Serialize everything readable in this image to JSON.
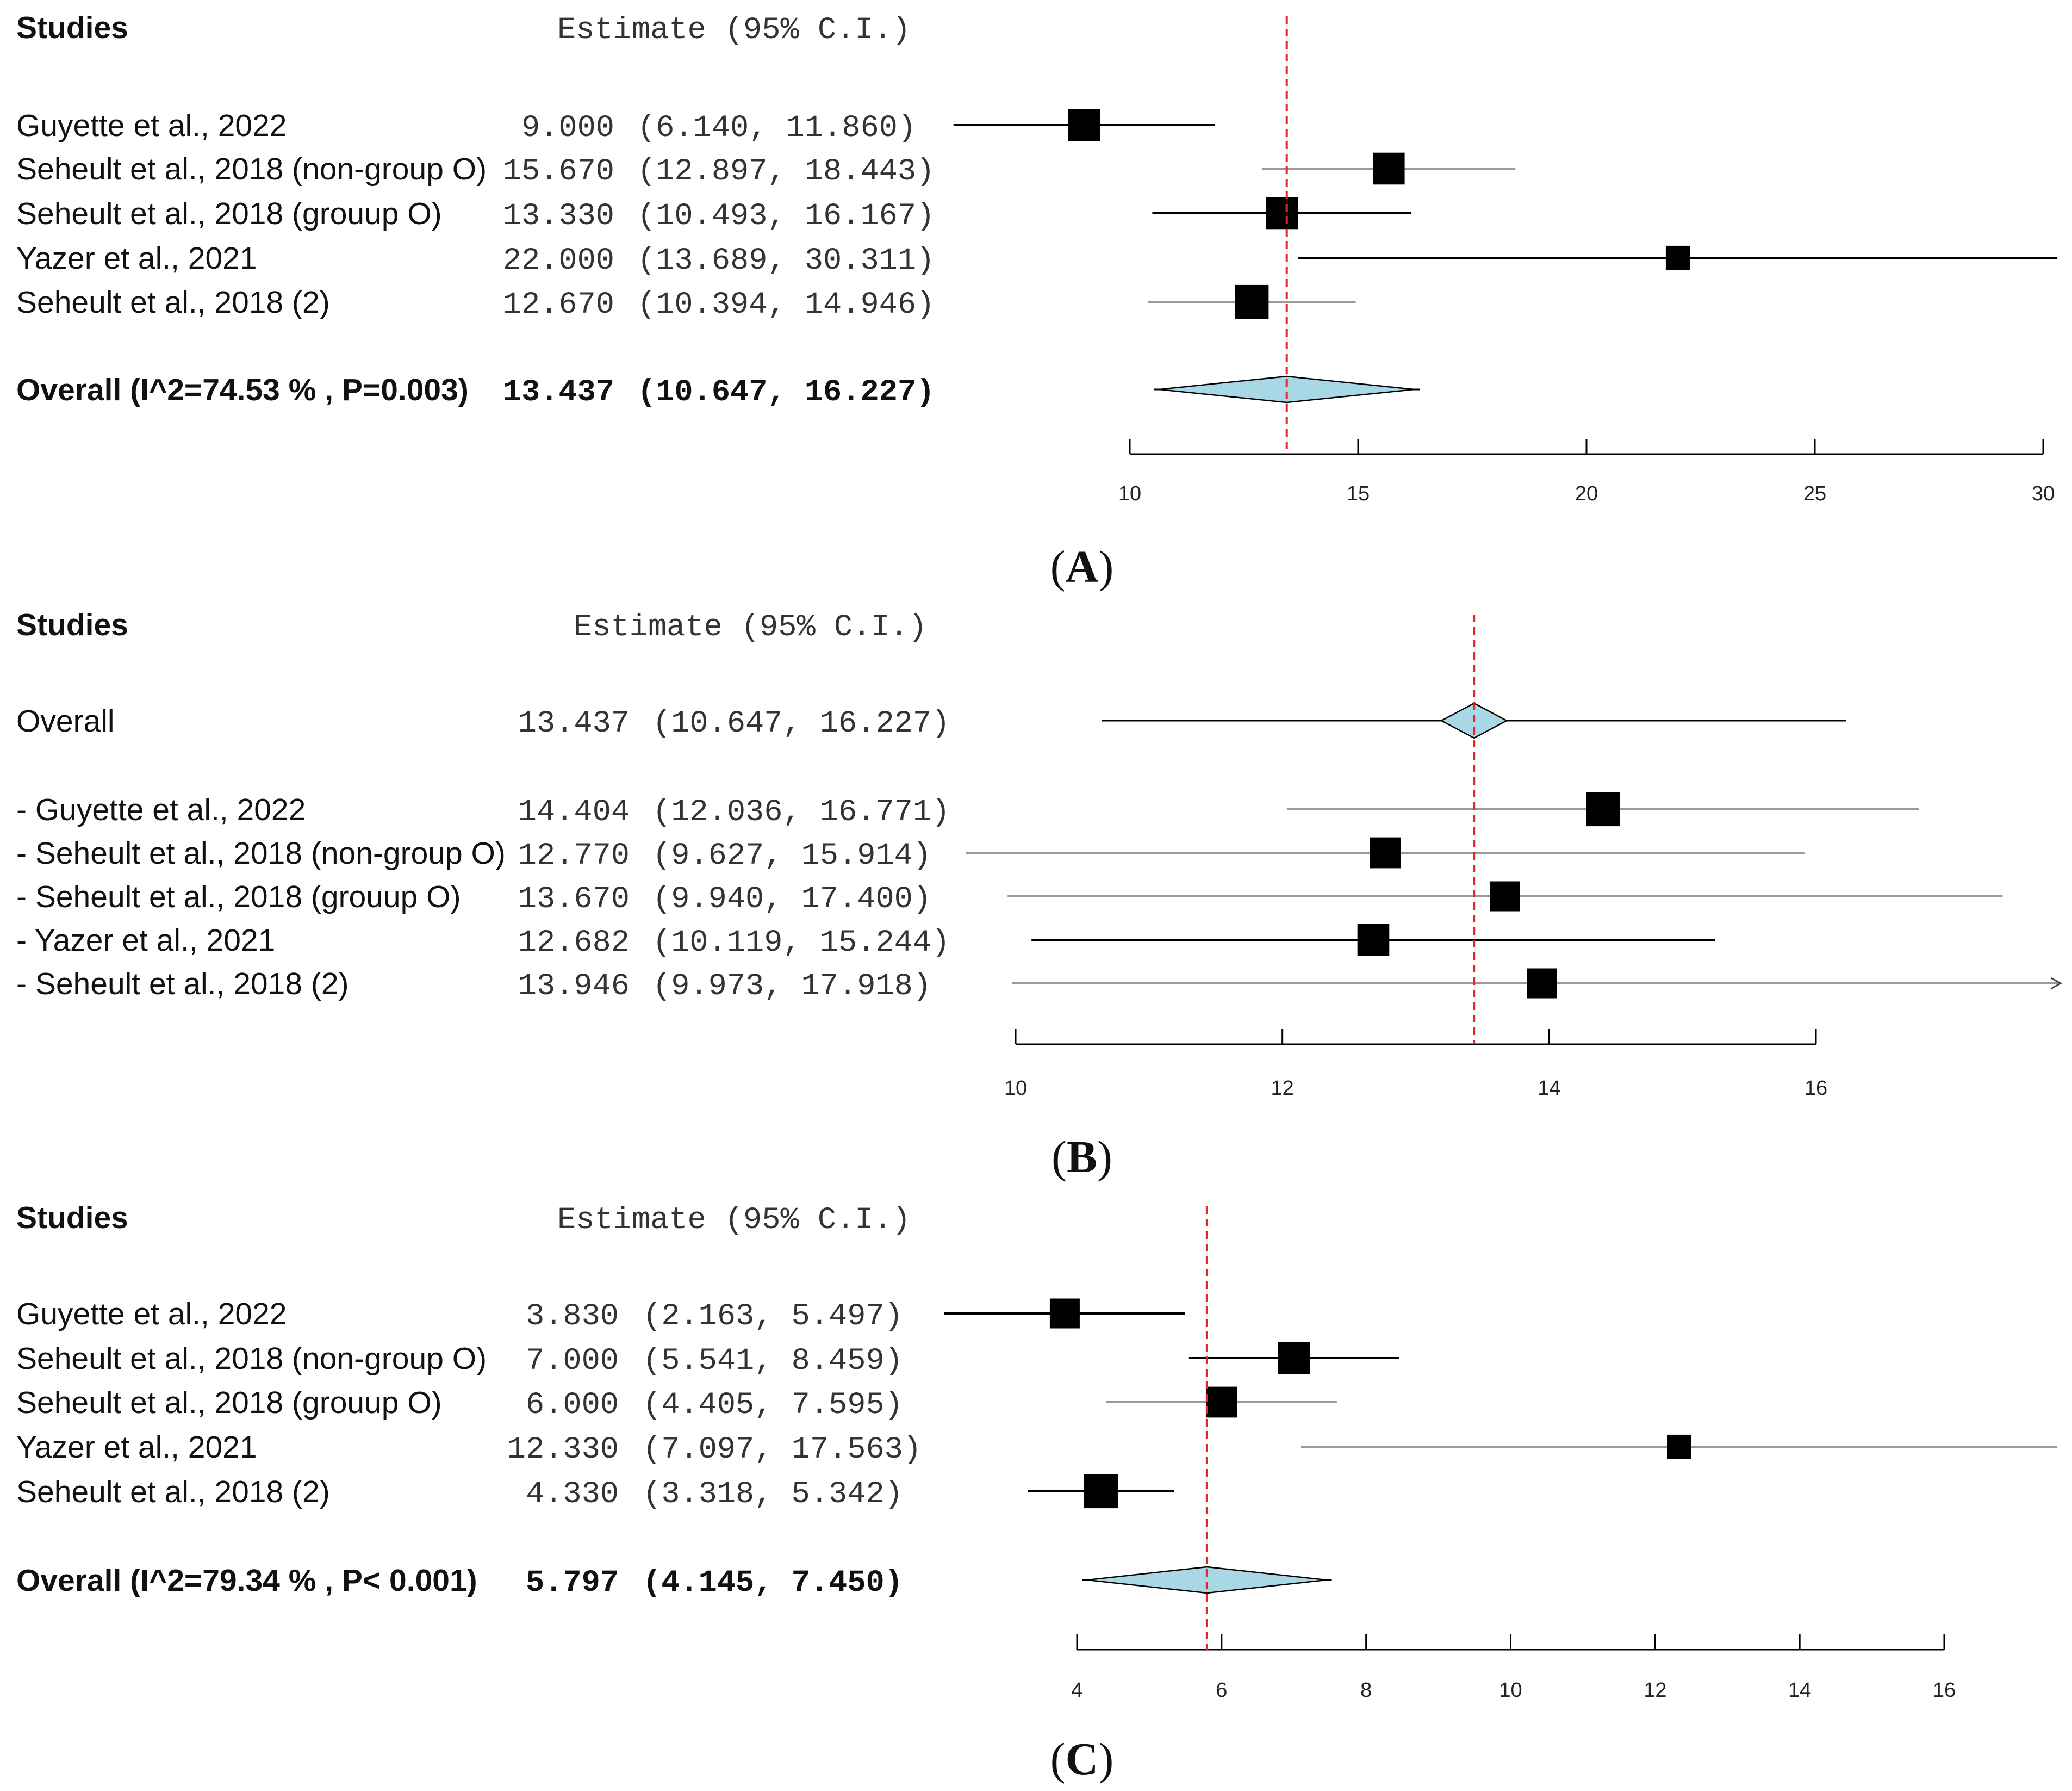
{
  "chart_data": [
    {
      "type": "forest",
      "panel_label": "A",
      "header": {
        "studies": "Studies",
        "estimate": "Estimate (95% C.I.)"
      },
      "xlim": [
        10,
        30
      ],
      "xticks": [
        10,
        15,
        20,
        25,
        30
      ],
      "reference_line": 13.437,
      "rows": [
        {
          "kind": "study",
          "label": "Guyette et al., 2022",
          "estimate": 9.0,
          "lower": 6.14,
          "upper": 11.86,
          "est_text": "9.000",
          "ci_text": "(6.140, 11.860)",
          "weight": 0.85,
          "ci_color": "#000000"
        },
        {
          "kind": "study",
          "label": "Seheult et al., 2018 (non-group O)",
          "estimate": 15.67,
          "lower": 12.897,
          "upper": 18.443,
          "est_text": "15.670",
          "ci_text": "(12.897, 18.443)",
          "weight": 0.85,
          "ci_color": "#999999"
        },
        {
          "kind": "study",
          "label": "Seheult et al., 2018 (grouup O)",
          "estimate": 13.33,
          "lower": 10.493,
          "upper": 16.167,
          "est_text": "13.330",
          "ci_text": "(10.493, 16.167)",
          "weight": 0.85,
          "ci_color": "#000000"
        },
        {
          "kind": "study",
          "label": "Yazer et al., 2021",
          "estimate": 22.0,
          "lower": 13.689,
          "upper": 30.311,
          "est_text": "22.000",
          "ci_text": "(13.689, 30.311)",
          "weight": 0.45,
          "ci_color": "#000000"
        },
        {
          "kind": "study",
          "label": "Seheult et al., 2018 (2)",
          "estimate": 12.67,
          "lower": 10.394,
          "upper": 14.946,
          "est_text": "12.670",
          "ci_text": "(10.394, 14.946)",
          "weight": 0.95,
          "ci_color": "#999999"
        },
        {
          "kind": "overall",
          "label": "Overall (I^2=74.53 % , P=0.003)",
          "estimate": 13.437,
          "lower": 10.647,
          "upper": 16.227,
          "est_text": "13.437",
          "ci_text": "(10.647, 16.227)"
        }
      ]
    },
    {
      "type": "forest-leave-one-out",
      "panel_label": "B",
      "header": {
        "studies": "Studies",
        "estimate": "Estimate (95% C.I.)"
      },
      "xlim": [
        10,
        16
      ],
      "xticks": [
        10,
        12,
        14,
        16
      ],
      "reference_line": 13.437,
      "rows": [
        {
          "kind": "overall-line",
          "label": "Overall",
          "estimate": 13.437,
          "lower": 10.647,
          "upper": 16.227,
          "est_text": "13.437",
          "ci_text": "(10.647, 16.227)",
          "ci_color": "#000000"
        },
        {
          "kind": "study",
          "label": "- Guyette et al., 2022",
          "estimate": 14.404,
          "lower": 12.036,
          "upper": 16.771,
          "est_text": "14.404",
          "ci_text": "(12.036, 16.771)",
          "weight": 0.95,
          "ci_color": "#999999"
        },
        {
          "kind": "study",
          "label": "- Seheult et al., 2018 (non-group O)",
          "estimate": 12.77,
          "lower": 9.627,
          "upper": 15.914,
          "est_text": "12.770",
          "ci_text": "(9.627, 15.914)",
          "weight": 0.8,
          "ci_color": "#999999"
        },
        {
          "kind": "study",
          "label": "- Seheult et al., 2018 (grouup O)",
          "estimate": 13.67,
          "lower": 9.94,
          "upper": 17.4,
          "est_text": "13.670",
          "ci_text": "(9.940, 17.400)",
          "weight": 0.75,
          "ci_color": "#999999"
        },
        {
          "kind": "study",
          "label": "- Yazer et al., 2021",
          "estimate": 12.682,
          "lower": 10.119,
          "upper": 15.244,
          "est_text": "12.682",
          "ci_text": "(10.119, 15.244)",
          "weight": 0.85,
          "ci_color": "#000000"
        },
        {
          "kind": "study",
          "label": "- Seheult et al., 2018 (2)",
          "estimate": 13.946,
          "lower": 9.973,
          "upper": 17.918,
          "est_text": "13.946",
          "ci_text": "(9.973, 17.918)",
          "weight": 0.75,
          "ci_color": "#999999"
        }
      ]
    },
    {
      "type": "forest",
      "panel_label": "C",
      "header": {
        "studies": "Studies",
        "estimate": "Estimate (95% C.I.)"
      },
      "xlim": [
        4,
        16
      ],
      "xticks": [
        4,
        6,
        8,
        10,
        12,
        14,
        16
      ],
      "reference_line": 5.797,
      "rows": [
        {
          "kind": "study",
          "label": "Guyette et al., 2022",
          "estimate": 3.83,
          "lower": 2.163,
          "upper": 5.497,
          "est_text": "3.830",
          "ci_text": "(2.163, 5.497)",
          "weight": 0.75,
          "ci_color": "#000000"
        },
        {
          "kind": "study",
          "label": "Seheult et al., 2018 (non-group O)",
          "estimate": 7.0,
          "lower": 5.541,
          "upper": 8.459,
          "est_text": "7.000",
          "ci_text": "(5.541, 8.459)",
          "weight": 0.85,
          "ci_color": "#000000"
        },
        {
          "kind": "study",
          "label": "Seheult et al., 2018 (grouup O)",
          "estimate": 6.0,
          "lower": 4.405,
          "upper": 7.595,
          "est_text": "6.000",
          "ci_text": "(4.405, 7.595)",
          "weight": 0.8,
          "ci_color": "#999999"
        },
        {
          "kind": "study",
          "label": "Yazer et al., 2021",
          "estimate": 12.33,
          "lower": 7.097,
          "upper": 17.563,
          "est_text": "12.330",
          "ci_text": "(7.097, 17.563)",
          "weight": 0.45,
          "ci_color": "#999999"
        },
        {
          "kind": "study",
          "label": "Seheult et al., 2018 (2)",
          "estimate": 4.33,
          "lower": 3.318,
          "upper": 5.342,
          "est_text": "4.330",
          "ci_text": "(3.318, 5.342)",
          "weight": 0.95,
          "ci_color": "#000000"
        },
        {
          "kind": "overall",
          "label": "Overall (I^2=79.34 % , P< 0.001)",
          "estimate": 5.797,
          "lower": 4.145,
          "upper": 7.45,
          "est_text": "5.797",
          "ci_text": "(4.145, 7.450)"
        }
      ]
    }
  ],
  "colors": {
    "reference_line": "#e8262a",
    "diamond_fill": "#a8d8e6",
    "marker": "#000000"
  }
}
